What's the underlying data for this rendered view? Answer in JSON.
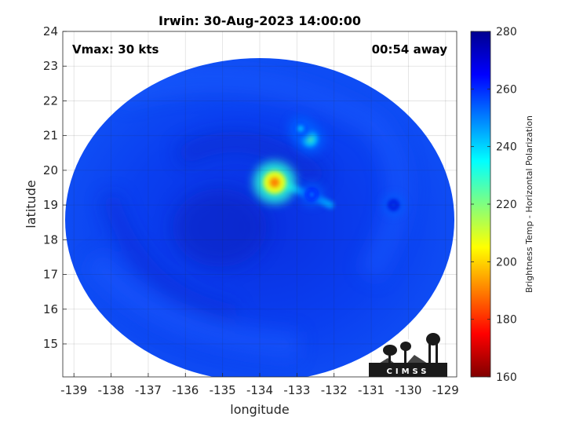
{
  "chart_data": {
    "type": "heatmap",
    "title": "Irwin: 30-Aug-2023 14:00:00",
    "xlabel": "longitude",
    "ylabel": "latitude",
    "xlim": [
      -139.3,
      -128.7
    ],
    "ylim": [
      14.05,
      24
    ],
    "xticks": [
      -139,
      -138,
      -137,
      -136,
      -135,
      -134,
      -133,
      -132,
      -131,
      -130,
      -129
    ],
    "yticks": [
      15,
      16,
      17,
      18,
      19,
      20,
      21,
      22,
      23,
      24
    ],
    "grid": true,
    "annotations": {
      "left": "Vmax: 30 kts",
      "right": "00:54 away"
    },
    "storm_center": {
      "lon": -134.0,
      "lat": 19.0
    },
    "background_tb": 262,
    "features": [
      {
        "lon": -133.6,
        "lat": 19.65,
        "min_tb": 190
      },
      {
        "lon": -132.65,
        "lat": 20.9,
        "min_tb": 225
      },
      {
        "lon": -132.9,
        "lat": 21.2,
        "min_tb": 238
      },
      {
        "lon": -132.6,
        "lat": 19.3,
        "min_tb": 245
      },
      {
        "lon": -130.4,
        "lat": 19.0,
        "min_tb": 252
      }
    ],
    "colorbar": {
      "label": "Brightness Temp - Horizontal Polarization",
      "range": [
        160,
        280
      ],
      "ticks": [
        160,
        180,
        200,
        220,
        240,
        260,
        280
      ],
      "colormap": "jet"
    },
    "logo_text": "CIMSS"
  }
}
